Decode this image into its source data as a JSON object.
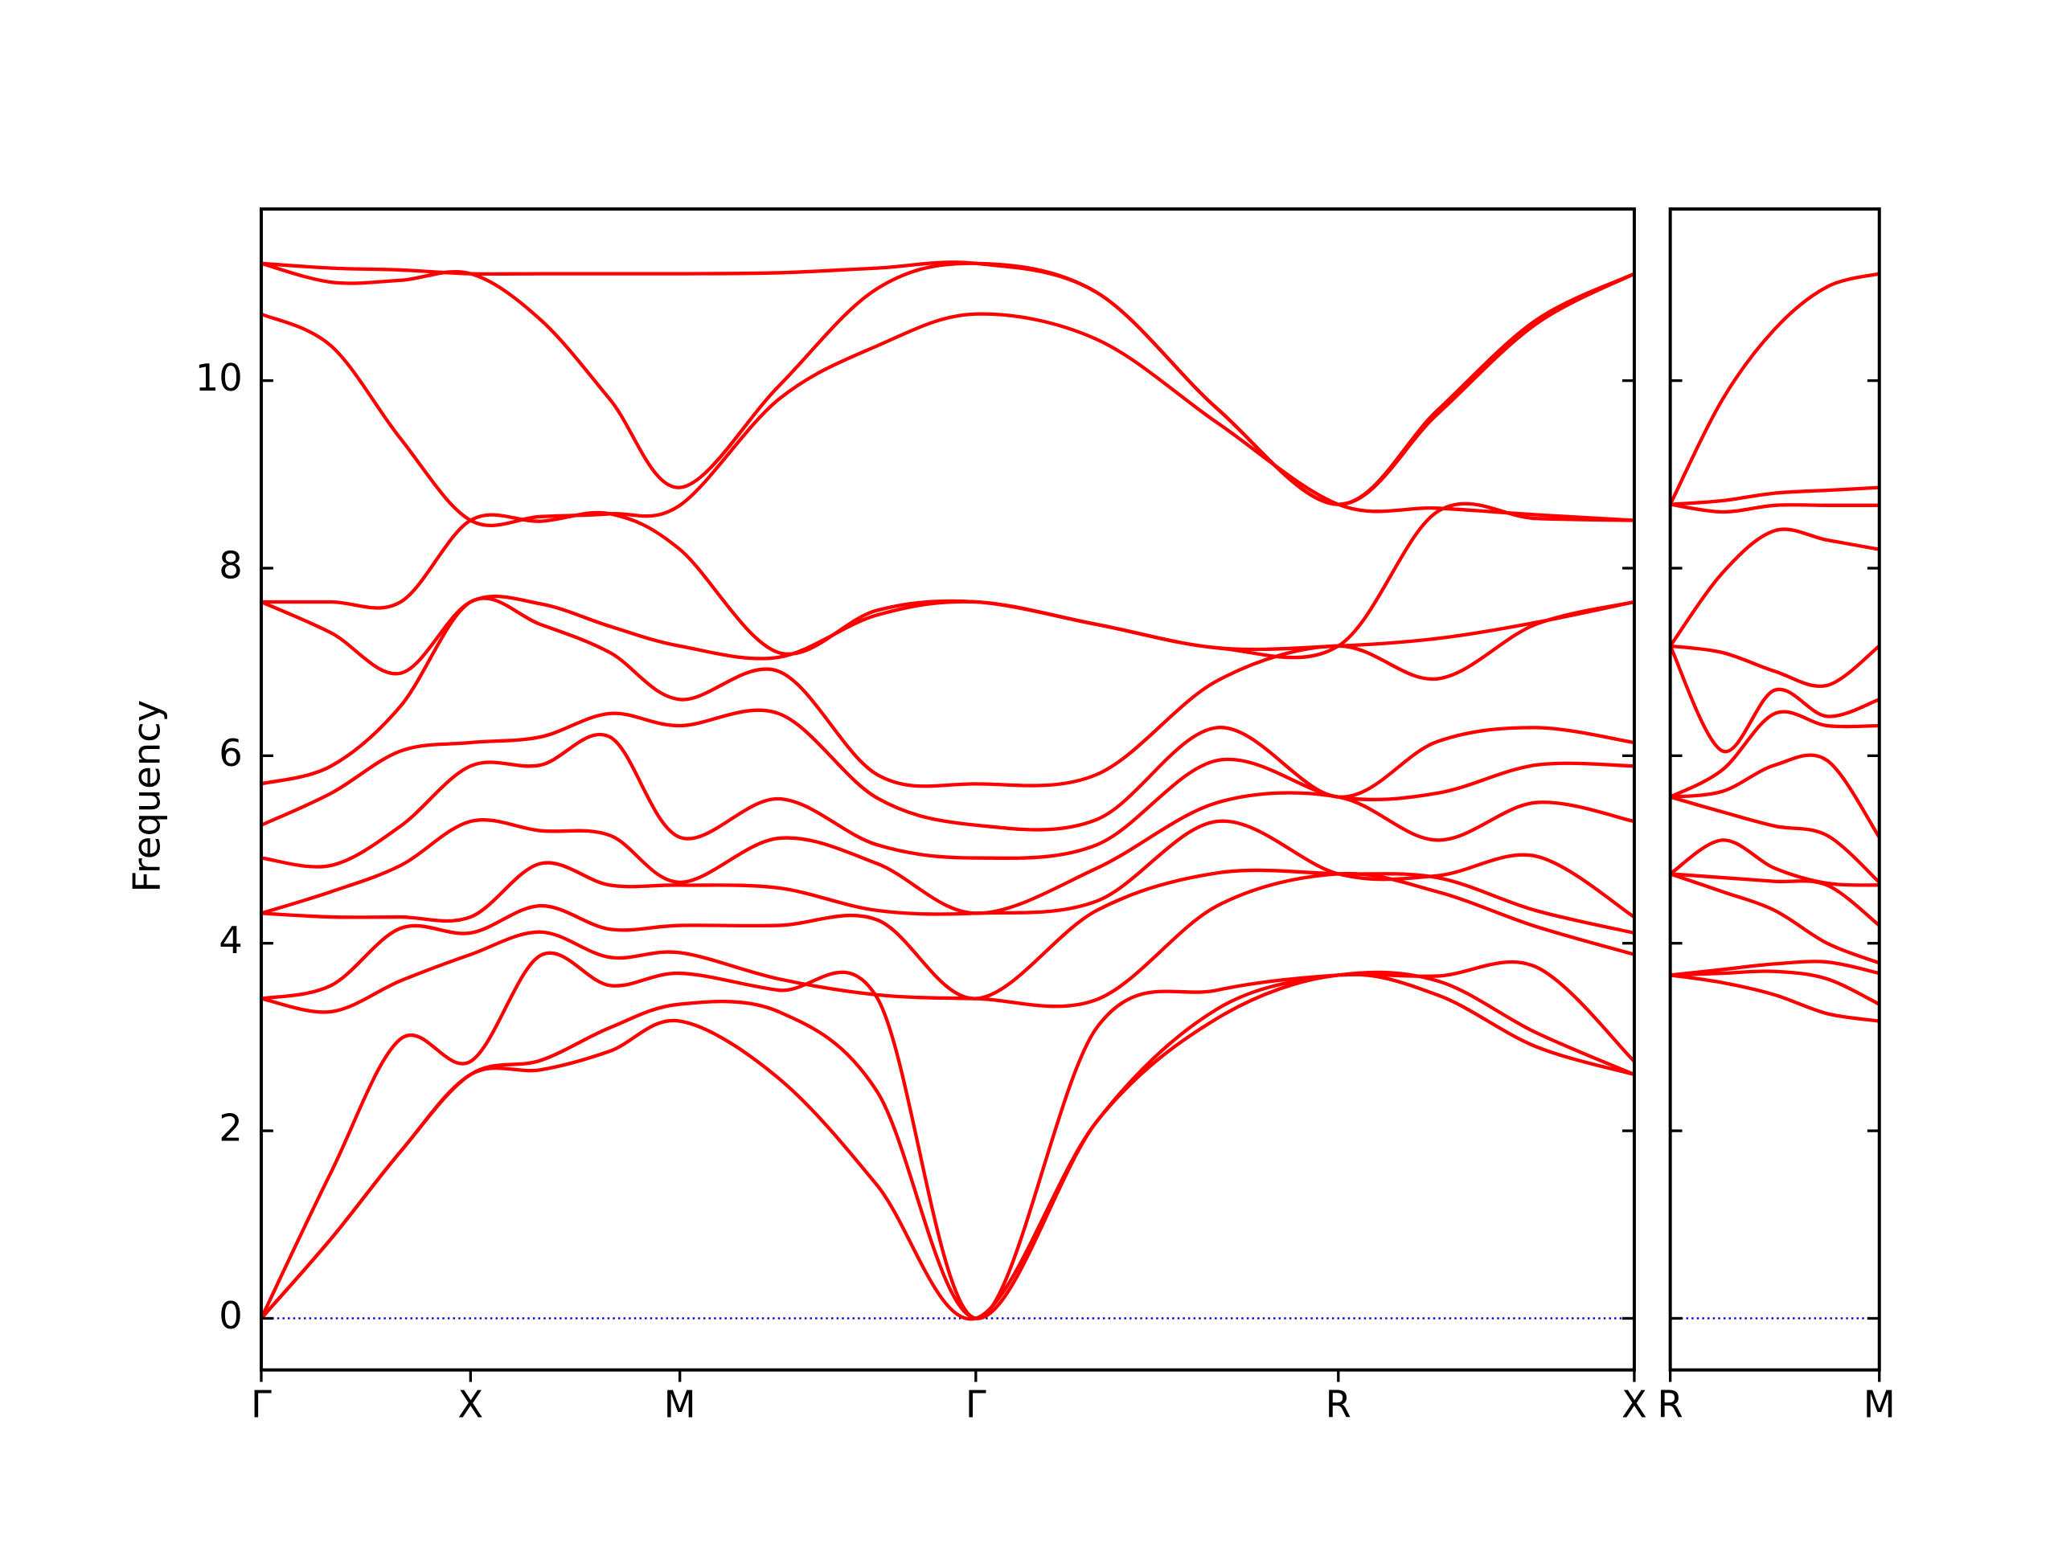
{
  "chart_data": [
    {
      "type": "line",
      "ylabel": "Frequency",
      "x": [
        0,
        0.167,
        0.333,
        0.5,
        0.667,
        0.833,
        1.0,
        1.236,
        1.471,
        1.707,
        1.996,
        2.284,
        2.573,
        2.809,
        3.044,
        3.28
      ],
      "xlim": [
        0,
        3.28
      ],
      "xticks": [
        {
          "value": 0,
          "label": "Γ"
        },
        {
          "value": 0.5,
          "label": "X"
        },
        {
          "value": 1.0,
          "label": "M"
        },
        {
          "value": 1.707,
          "label": "Γ"
        },
        {
          "value": 2.573,
          "label": "R"
        },
        {
          "value": 3.28,
          "label": "X"
        }
      ],
      "ylim": [
        -0.55,
        11.83
      ],
      "yticks": [
        0,
        2,
        4,
        6,
        8,
        10
      ],
      "ytick_labels": true,
      "zero_line": {
        "value": 0,
        "color": "#0000cc"
      },
      "series": [
        {
          "color": "#ff0000",
          "values": [
            0,
            0.85,
            1.78,
            2.6,
            2.65,
            2.85,
            3.17,
            2.56,
            1.42,
            0,
            2.1,
            3.2,
            3.66,
            3.45,
            2.9,
            2.6
          ]
        },
        {
          "color": "#ff0000",
          "values": [
            0,
            0.85,
            1.78,
            2.6,
            2.75,
            3.1,
            3.35,
            3.27,
            2.42,
            0,
            2.1,
            3.3,
            3.66,
            3.6,
            3.05,
            2.6
          ]
        },
        {
          "color": "#ff0000",
          "values": [
            0,
            1.56,
            2.98,
            2.74,
            3.87,
            3.55,
            3.68,
            3.5,
            3.42,
            0,
            3.1,
            3.5,
            3.66,
            3.65,
            3.75,
            2.74
          ]
        },
        {
          "color": "#ff0000",
          "values": [
            3.41,
            3.27,
            3.6,
            3.88,
            4.12,
            3.85,
            3.9,
            3.62,
            3.45,
            3.41,
            3.4,
            4.4,
            4.74,
            4.55,
            4.18,
            3.88
          ]
        },
        {
          "color": "#ff0000",
          "values": [
            3.41,
            3.55,
            4.16,
            4.11,
            4.4,
            4.15,
            4.19,
            4.19,
            4.25,
            3.41,
            4.35,
            4.75,
            4.74,
            4.7,
            4.35,
            4.11
          ]
        },
        {
          "color": "#ff0000",
          "values": [
            4.32,
            4.28,
            4.28,
            4.28,
            4.85,
            4.62,
            4.62,
            4.59,
            4.35,
            4.32,
            4.45,
            5.3,
            4.74,
            4.72,
            4.93,
            4.28
          ]
        },
        {
          "color": "#ff0000",
          "values": [
            4.32,
            4.55,
            4.83,
            5.3,
            5.2,
            5.15,
            4.65,
            5.12,
            4.85,
            4.32,
            4.8,
            5.5,
            5.56,
            5.1,
            5.5,
            5.3
          ]
        },
        {
          "color": "#ff0000",
          "values": [
            4.91,
            4.83,
            5.25,
            5.89,
            5.9,
            6.2,
            5.13,
            5.54,
            5.05,
            4.91,
            5.05,
            5.95,
            5.56,
            5.6,
            5.9,
            5.89
          ]
        },
        {
          "color": "#ff0000",
          "values": [
            5.26,
            5.6,
            6.05,
            6.14,
            6.2,
            6.45,
            6.32,
            6.45,
            5.55,
            5.26,
            5.32,
            6.3,
            5.56,
            6.15,
            6.3,
            6.14
          ]
        },
        {
          "color": "#ff0000",
          "values": [
            5.7,
            5.89,
            6.53,
            7.64,
            7.4,
            7.1,
            6.6,
            6.9,
            5.8,
            5.7,
            5.8,
            6.8,
            7.17,
            6.82,
            7.4,
            7.64
          ]
        },
        {
          "color": "#ff0000",
          "values": [
            7.64,
            7.31,
            6.88,
            7.64,
            7.62,
            7.38,
            7.17,
            7.05,
            7.5,
            7.64,
            7.4,
            7.15,
            7.17,
            7.25,
            7.42,
            7.64
          ]
        },
        {
          "color": "#ff0000",
          "values": [
            7.64,
            7.64,
            7.64,
            8.51,
            8.5,
            8.58,
            8.2,
            7.1,
            7.55,
            7.64,
            7.4,
            7.15,
            7.17,
            8.6,
            8.53,
            8.51
          ]
        },
        {
          "color": "#ff0000",
          "values": [
            10.71,
            10.37,
            9.38,
            8.51,
            8.55,
            8.58,
            8.67,
            9.8,
            10.37,
            10.71,
            10.44,
            9.55,
            8.68,
            8.64,
            8.57,
            8.51
          ]
        },
        {
          "color": "#ff0000",
          "values": [
            11.25,
            11.05,
            11.07,
            11.14,
            10.65,
            9.8,
            8.86,
            9.94,
            10.98,
            11.25,
            10.94,
            9.7,
            8.68,
            9.64,
            10.6,
            11.14
          ]
        },
        {
          "color": "#ff0000",
          "values": [
            11.25,
            11.2,
            11.18,
            11.14,
            11.14,
            11.14,
            11.14,
            11.15,
            11.2,
            11.25,
            10.94,
            9.7,
            8.68,
            9.68,
            10.64,
            11.14
          ]
        }
      ]
    },
    {
      "type": "line",
      "x": [
        0,
        0.125,
        0.25,
        0.375,
        0.5
      ],
      "xlim": [
        0,
        0.5
      ],
      "xticks": [
        {
          "value": 0,
          "label": "R"
        },
        {
          "value": 0.5,
          "label": "M"
        }
      ],
      "ylim": [
        -0.55,
        11.83
      ],
      "yticks": [
        0,
        2,
        4,
        6,
        8,
        10
      ],
      "ytick_labels": false,
      "zero_line": {
        "value": 0,
        "color": "#0000cc"
      },
      "series": [
        {
          "color": "#ff0000",
          "values": [
            3.66,
            3.58,
            3.45,
            3.25,
            3.17
          ]
        },
        {
          "color": "#ff0000",
          "values": [
            3.66,
            3.68,
            3.7,
            3.62,
            3.35
          ]
        },
        {
          "color": "#ff0000",
          "values": [
            3.66,
            3.72,
            3.78,
            3.8,
            3.68
          ]
        },
        {
          "color": "#ff0000",
          "values": [
            4.74,
            4.55,
            4.35,
            4.0,
            3.79
          ]
        },
        {
          "color": "#ff0000",
          "values": [
            4.74,
            4.7,
            4.66,
            4.62,
            4.19
          ]
        },
        {
          "color": "#ff0000",
          "values": [
            4.74,
            5.1,
            4.8,
            4.64,
            4.62
          ]
        },
        {
          "color": "#ff0000",
          "values": [
            5.56,
            5.4,
            5.25,
            5.15,
            4.65
          ]
        },
        {
          "color": "#ff0000",
          "values": [
            5.56,
            5.62,
            5.9,
            5.95,
            5.13
          ]
        },
        {
          "color": "#ff0000",
          "values": [
            5.56,
            5.85,
            6.45,
            6.32,
            6.32
          ]
        },
        {
          "color": "#ff0000",
          "values": [
            7.17,
            6.05,
            6.7,
            6.42,
            6.6
          ]
        },
        {
          "color": "#ff0000",
          "values": [
            7.17,
            7.1,
            6.9,
            6.75,
            7.17
          ]
        },
        {
          "color": "#ff0000",
          "values": [
            7.17,
            7.95,
            8.4,
            8.3,
            8.2
          ]
        },
        {
          "color": "#ff0000",
          "values": [
            8.68,
            8.6,
            8.67,
            8.67,
            8.67
          ]
        },
        {
          "color": "#ff0000",
          "values": [
            8.68,
            8.72,
            8.8,
            8.83,
            8.86
          ]
        },
        {
          "color": "#ff0000",
          "values": [
            8.68,
            9.8,
            10.55,
            11.0,
            11.14
          ]
        }
      ]
    }
  ]
}
